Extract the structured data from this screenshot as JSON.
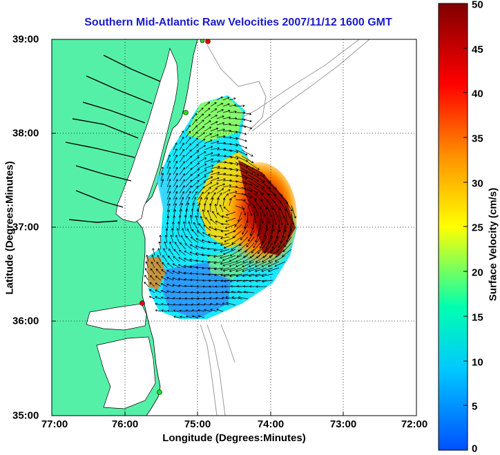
{
  "title": "Southern Mid-Atlantic Raw Velocities 2007/11/12 1600 GMT",
  "xaxis": {
    "label": "Longitude (Degrees:Minutes)",
    "ticks": [
      "77:00",
      "76:00",
      "75:00",
      "74:00",
      "73:00",
      "72:00"
    ]
  },
  "yaxis": {
    "label": "Latitude (Degrees:Minutes)",
    "ticks": [
      "39:00",
      "38:00",
      "37:00",
      "36:00",
      "35:00"
    ]
  },
  "colorbar": {
    "label": "Surface Velocity (cm/s)",
    "ticks": [
      "50",
      "45",
      "40",
      "35",
      "30",
      "25",
      "20",
      "15",
      "10",
      "5",
      "0"
    ],
    "range": [
      0,
      50
    ],
    "stops": [
      "#0050ff",
      "#00c8ff",
      "#00ffb0",
      "#ffff00",
      "#ff9000",
      "#ff0000",
      "#800000"
    ]
  },
  "colors": {
    "land": "#55f0a8",
    "water": "#ffffff",
    "coast": "#000000",
    "bathymetry": "#999999",
    "station": "#ee0000",
    "station_alt": "#22dd22"
  },
  "map_extent": {
    "lon": [
      -77,
      -72
    ],
    "lat": [
      35,
      39
    ]
  }
}
